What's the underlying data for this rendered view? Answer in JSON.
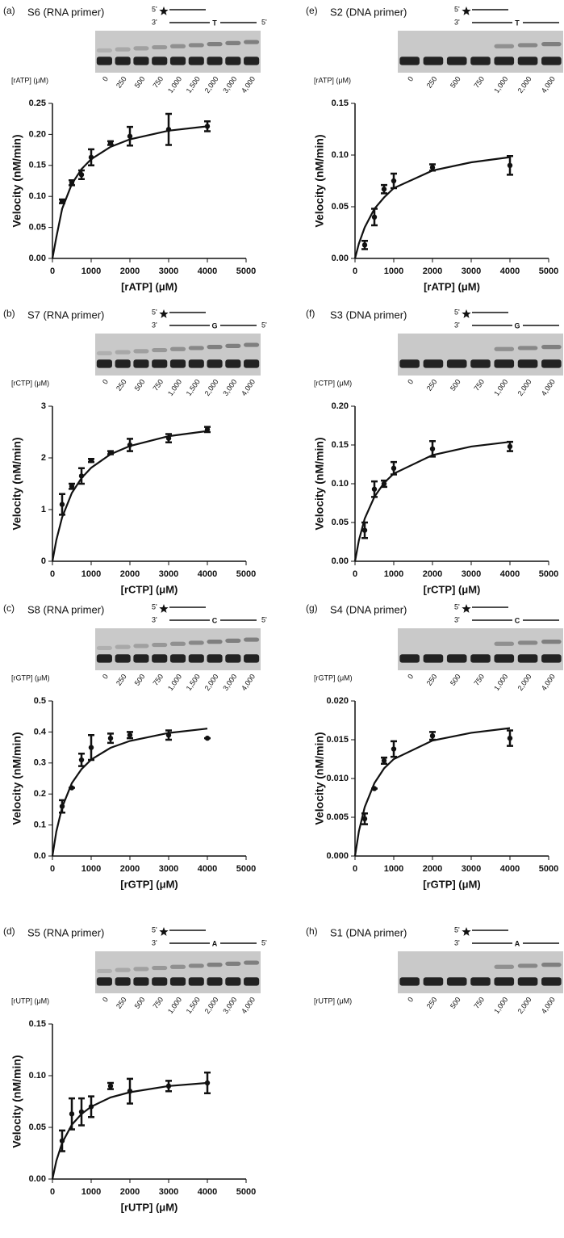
{
  "panels": [
    {
      "label": "(a)",
      "title": "S6 (RNA primer)",
      "five": "5'",
      "three": "3'",
      "base": "T",
      "end": "5'",
      "gel_label": "[rATP] (μM)",
      "lanes": [
        "0",
        "250",
        "500",
        "750",
        "1,000",
        "1,500",
        "2,000",
        "3,000",
        "4,000"
      ]
    },
    {
      "label": "(b)",
      "title": "S7 (RNA primer)",
      "five": "5'",
      "three": "3'",
      "base": "G",
      "end": "5'",
      "gel_label": "[rCTP] (μM)",
      "lanes": [
        "0",
        "250",
        "500",
        "750",
        "1,000",
        "1,500",
        "2,000",
        "3,000",
        "4,000"
      ]
    },
    {
      "label": "(c)",
      "title": "S8 (RNA primer)",
      "five": "5'",
      "three": "3'",
      "base": "C",
      "end": "5'",
      "gel_label": "[rGTP] (μM)",
      "lanes": [
        "0",
        "250",
        "500",
        "750",
        "1,000",
        "1,500",
        "2,000",
        "3,000",
        "4,000"
      ]
    },
    {
      "label": "(d)",
      "title": "S5 (RNA primer)",
      "five": "5'",
      "three": "3'",
      "base": "A",
      "end": "5'",
      "gel_label": "[rUTP] (μM)",
      "lanes": [
        "0",
        "250",
        "500",
        "750",
        "1,000",
        "1,500",
        "2,000",
        "3,000",
        "4,000"
      ]
    },
    {
      "label": "(e)",
      "title": "S2 (DNA primer)",
      "five": "5'",
      "three": "3'",
      "base": "T",
      "end": "5'",
      "gel_label": "[rATP] (μM)",
      "lanes": [
        "0",
        "250",
        "500",
        "750",
        "1,000",
        "2,000",
        "4,000"
      ]
    },
    {
      "label": "(f)",
      "title": "S3 (DNA primer)",
      "five": "5'",
      "three": "3'",
      "base": "G",
      "end": "5'",
      "gel_label": "[rCTP] (μM)",
      "lanes": [
        "0",
        "250",
        "500",
        "750",
        "1,000",
        "2,000",
        "4,000"
      ]
    },
    {
      "label": "(g)",
      "title": "S4 (DNA primer)",
      "five": "5'",
      "three": "3'",
      "base": "C",
      "end": "5'",
      "gel_label": "[rGTP] (μM)",
      "lanes": [
        "0",
        "250",
        "500",
        "750",
        "1,000",
        "2,000",
        "4,000"
      ]
    },
    {
      "label": "(h)",
      "title": "S1 (DNA primer)",
      "five": "5'",
      "three": "3'",
      "base": "A",
      "end": "5'",
      "gel_label": "[rUTP] (μM)",
      "lanes": [
        "0",
        "250",
        "500",
        "750",
        "1,000",
        "2,000",
        "4,000"
      ]
    }
  ],
  "chart_data": [
    {
      "type": "scatter",
      "ylabel": "Velocity (nM/min)",
      "xlabel": "[rATP] (μM)",
      "color": "#111111",
      "xlim": [
        0,
        5000
      ],
      "xticks": [
        0,
        1000,
        2000,
        3000,
        4000,
        5000
      ],
      "ylim": [
        0,
        0.25
      ],
      "yticks": [
        {
          "value": 0,
          "label": "0.00"
        },
        {
          "value": 0.05,
          "label": "0.05"
        },
        {
          "value": 0.1,
          "label": "0.10"
        },
        {
          "value": 0.15,
          "label": "0.15"
        },
        {
          "value": 0.2,
          "label": "0.20"
        },
        {
          "value": 0.25,
          "label": "0.25"
        }
      ],
      "x": [
        250,
        500,
        750,
        1000,
        1500,
        2000,
        3000,
        4000
      ],
      "values": [
        0.092,
        0.122,
        0.135,
        0.163,
        0.186,
        0.197,
        0.208,
        0.213
      ],
      "errors": [
        0.003,
        0.004,
        0.007,
        0.013,
        0.003,
        0.015,
        0.025,
        0.008
      ],
      "fit": {
        "x": [
          0,
          100,
          250,
          500,
          750,
          1000,
          1500,
          2000,
          3000,
          4000
        ],
        "values": [
          0,
          0.034,
          0.08,
          0.12,
          0.144,
          0.16,
          0.18,
          0.192,
          0.206,
          0.213
        ]
      }
    },
    {
      "type": "scatter",
      "ylabel": "Velocity (nM/min)",
      "xlabel": "[rCTP] (μM)",
      "color": "#111111",
      "xlim": [
        0,
        5000
      ],
      "xticks": [
        0,
        1000,
        2000,
        3000,
        4000,
        5000
      ],
      "ylim": [
        0,
        3
      ],
      "yticks": [
        0,
        1,
        2,
        3
      ],
      "x": [
        250,
        500,
        750,
        1000,
        1500,
        2000,
        3000,
        4000
      ],
      "values": [
        1.1,
        1.45,
        1.65,
        1.95,
        2.1,
        2.25,
        2.38,
        2.55
      ],
      "errors": [
        0.2,
        0.05,
        0.15,
        0.03,
        0.03,
        0.12,
        0.08,
        0.05
      ],
      "fit": {
        "x": [
          0,
          100,
          250,
          500,
          750,
          1000,
          1500,
          2000,
          3000,
          4000
        ],
        "values": [
          0,
          0.41,
          0.85,
          1.32,
          1.61,
          1.81,
          2.07,
          2.23,
          2.42,
          2.52
        ]
      }
    },
    {
      "type": "scatter",
      "ylabel": "Velocity (nM/min)",
      "xlabel": "[rGTP] (μM)",
      "color": "#111111",
      "xlim": [
        0,
        5000
      ],
      "xticks": [
        0,
        1000,
        2000,
        3000,
        4000,
        5000
      ],
      "ylim": [
        0,
        0.5
      ],
      "yticks": [
        {
          "value": 0,
          "label": "0.0"
        },
        0.1,
        0.2,
        0.3,
        0.4,
        0.5
      ],
      "x": [
        250,
        500,
        750,
        1000,
        1500,
        2000,
        3000,
        4000
      ],
      "values": [
        0.16,
        0.22,
        0.31,
        0.35,
        0.38,
        0.39,
        0.39,
        0.38
      ],
      "errors": [
        0.02,
        0,
        0.02,
        0.04,
        0.015,
        0.01,
        0.015,
        0
      ],
      "fit": {
        "x": [
          0,
          100,
          250,
          500,
          750,
          1000,
          1500,
          2000,
          3000,
          4000
        ],
        "values": [
          0,
          0.079,
          0.157,
          0.235,
          0.28,
          0.311,
          0.349,
          0.371,
          0.397,
          0.411
        ]
      }
    },
    {
      "type": "scatter",
      "ylabel": "Velocity (nM/min)",
      "xlabel": "[rUTP] (μM)",
      "color": "#111111",
      "xlim": [
        0,
        5000
      ],
      "xticks": [
        0,
        1000,
        2000,
        3000,
        4000,
        5000
      ],
      "ylim": [
        0,
        0.15
      ],
      "yticks": [
        {
          "value": 0,
          "label": "0.00"
        },
        0.05,
        {
          "value": 0.1,
          "label": "0.10"
        },
        0.15
      ],
      "x": [
        250,
        500,
        750,
        1000,
        1500,
        2000,
        3000,
        4000
      ],
      "values": [
        0.037,
        0.063,
        0.065,
        0.07,
        0.09,
        0.085,
        0.09,
        0.093
      ],
      "errors": [
        0.01,
        0.015,
        0.013,
        0.01,
        0.003,
        0.012,
        0.005,
        0.01
      ],
      "fit": {
        "x": [
          0,
          100,
          250,
          500,
          750,
          1000,
          1500,
          2000,
          3000,
          4000
        ],
        "values": [
          0,
          0.0175,
          0.035,
          0.0525,
          0.063,
          0.07,
          0.079,
          0.084,
          0.09,
          0.093
        ]
      }
    },
    {
      "type": "scatter",
      "ylabel": "Velocity (nM/min)",
      "xlabel": "[rATP] (μM)",
      "color": "#111111",
      "xlim": [
        0,
        5000
      ],
      "xticks": [
        0,
        1000,
        2000,
        3000,
        4000,
        5000
      ],
      "ylim": [
        0,
        0.15
      ],
      "yticks": [
        {
          "value": 0,
          "label": "0.00"
        },
        0.05,
        {
          "value": 0.1,
          "label": "0.10"
        },
        0.15
      ],
      "x": [
        250,
        500,
        750,
        1000,
        2000,
        4000
      ],
      "values": [
        0.013,
        0.04,
        0.067,
        0.075,
        0.088,
        0.09
      ],
      "errors": [
        0.004,
        0.008,
        0.004,
        0.007,
        0.003,
        0.009
      ],
      "fit": {
        "x": [
          0,
          100,
          250,
          500,
          750,
          1000,
          2000,
          3000,
          4000
        ],
        "values": [
          0,
          0.0144,
          0.03,
          0.048,
          0.059,
          0.068,
          0.085,
          0.093,
          0.098
        ]
      }
    },
    {
      "type": "scatter",
      "ylabel": "Velocity (nM/min)",
      "xlabel": "[rCTP] (μM)",
      "color": "#111111",
      "xlim": [
        0,
        5000
      ],
      "xticks": [
        0,
        1000,
        2000,
        3000,
        4000,
        5000
      ],
      "ylim": [
        0,
        0.2
      ],
      "yticks": [
        {
          "value": 0,
          "label": "0.00"
        },
        0.05,
        {
          "value": 0.1,
          "label": "0.10"
        },
        0.15,
        {
          "value": 0.2,
          "label": "0.20"
        }
      ],
      "x": [
        250,
        500,
        750,
        1000,
        2000,
        4000
      ],
      "values": [
        0.04,
        0.093,
        0.1,
        0.12,
        0.145,
        0.148
      ],
      "errors": [
        0.01,
        0.01,
        0.004,
        0.008,
        0.01,
        0.006
      ],
      "fit": {
        "x": [
          0,
          100,
          250,
          500,
          750,
          1000,
          2000,
          3000,
          4000
        ],
        "values": [
          0,
          0.027,
          0.055,
          0.083,
          0.101,
          0.113,
          0.137,
          0.148,
          0.154
        ]
      }
    },
    {
      "type": "scatter",
      "ylabel": "Velocity (nM/min)",
      "xlabel": "[rGTP] (μM)",
      "color": "#111111",
      "xlim": [
        0,
        5000
      ],
      "xticks": [
        0,
        1000,
        2000,
        3000,
        4000,
        5000
      ],
      "ylim": [
        0,
        0.02
      ],
      "yticks": [
        {
          "value": 0,
          "label": "0.000"
        },
        0.005,
        {
          "value": 0.01,
          "label": "0.010"
        },
        0.015,
        {
          "value": 0.02,
          "label": "0.020"
        }
      ],
      "x": [
        250,
        500,
        750,
        1000,
        2000,
        4000
      ],
      "values": [
        0.0048,
        0.0087,
        0.0123,
        0.0138,
        0.0155,
        0.0152
      ],
      "errors": [
        0.0007,
        0,
        0.0004,
        0.001,
        0.0005,
        0.001
      ],
      "fit": {
        "x": [
          0,
          100,
          250,
          500,
          750,
          1000,
          2000,
          3000,
          4000
        ],
        "values": [
          0,
          0.0032,
          0.0063,
          0.0094,
          0.0113,
          0.0125,
          0.0149,
          0.0159,
          0.0165
        ]
      }
    }
  ]
}
